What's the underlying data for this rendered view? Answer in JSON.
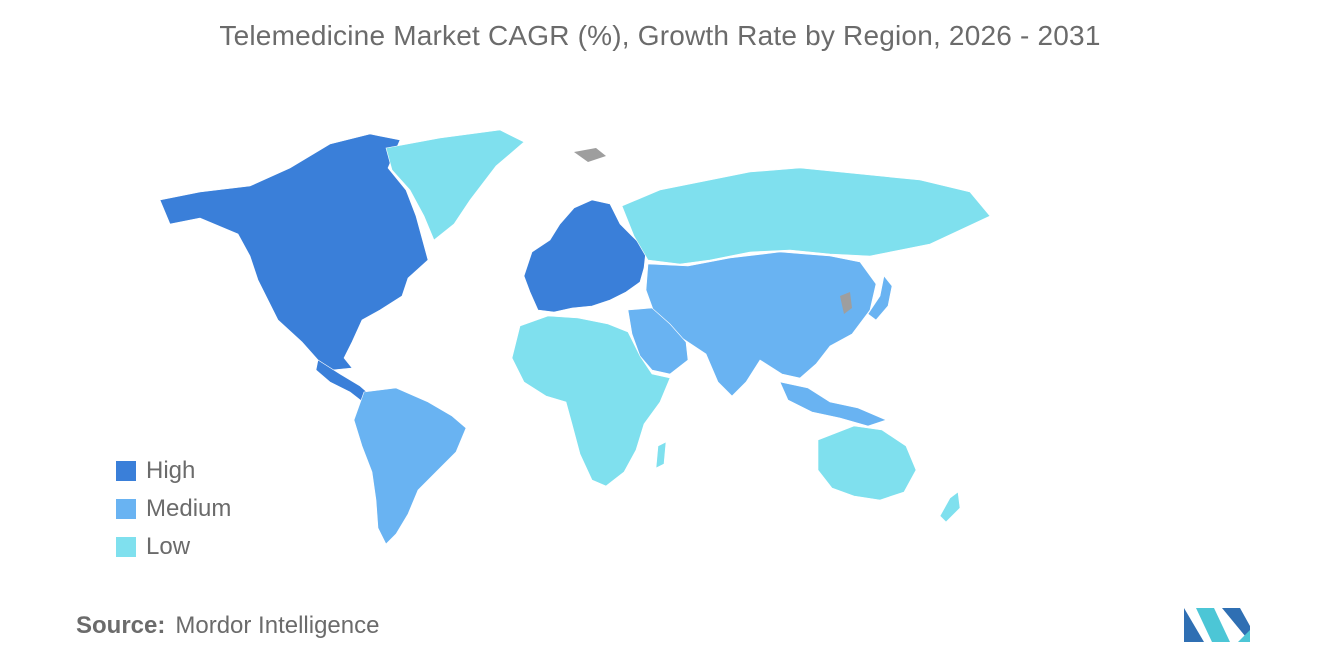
{
  "title": "Telemedicine Market CAGR (%), Growth Rate by Region, 2026 - 2031",
  "legend": [
    {
      "label": "High",
      "color": "#3a7fd9"
    },
    {
      "label": "Medium",
      "color": "#69b3f2"
    },
    {
      "label": "Low",
      "color": "#7fe0ee"
    }
  ],
  "no_data_color": "#9e9e9e",
  "source": {
    "key": "Source:",
    "value": "Mordor Intelligence"
  },
  "logo": {
    "icon": "mordor-intelligence-logo",
    "colors": [
      "#2f6fb3",
      "#4cc6d6"
    ]
  },
  "regions": [
    {
      "name": "North America",
      "category": "High"
    },
    {
      "name": "Europe",
      "category": "High"
    },
    {
      "name": "Asia-Pacific",
      "category": "Medium"
    },
    {
      "name": "South America",
      "category": "Medium"
    },
    {
      "name": "Middle East",
      "category": "Medium"
    },
    {
      "name": "Africa",
      "category": "Low"
    },
    {
      "name": "Russia",
      "category": "Low"
    },
    {
      "name": "Greenland",
      "category": "Low"
    },
    {
      "name": "Australia",
      "category": "Low"
    }
  ]
}
